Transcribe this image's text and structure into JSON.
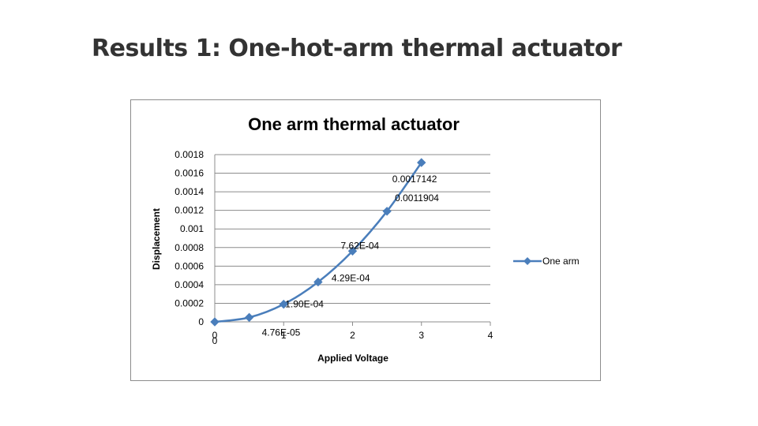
{
  "slide": {
    "title": "Results 1: One-hot-arm thermal actuator"
  },
  "colors": {
    "series": "#4a7ebb",
    "gridline": "#8c8c8c",
    "title_text": "#333333"
  },
  "chart_data": {
    "type": "scatter",
    "title": "One arm thermal actuator",
    "xlabel": "Applied Voltage",
    "ylabel": "Displacement",
    "xlim": [
      0,
      4
    ],
    "ylim": [
      0,
      0.0018
    ],
    "x_ticks": [
      "0",
      "1",
      "2",
      "3",
      "4"
    ],
    "y_ticks": [
      "0",
      "0.0002",
      "0.0004",
      "0.0006",
      "0.0008",
      "0.001",
      "0.0012",
      "0.0014",
      "0.0016",
      "0.0018"
    ],
    "grid": true,
    "legend_position": "right",
    "series": [
      {
        "name": "One arm",
        "marker": "diamond",
        "smooth": true,
        "x": [
          0,
          0.5,
          1,
          1.5,
          2,
          2.5,
          3
        ],
        "y": [
          0,
          4.76e-05,
          0.00019,
          0.000429,
          0.000762,
          0.0011904,
          0.0017142
        ],
        "labels": [
          "0",
          "4.76E-05",
          "1.90E-04",
          "4.29E-04",
          "7.62E-04",
          "0.0011904",
          "0.0017142"
        ]
      }
    ]
  }
}
